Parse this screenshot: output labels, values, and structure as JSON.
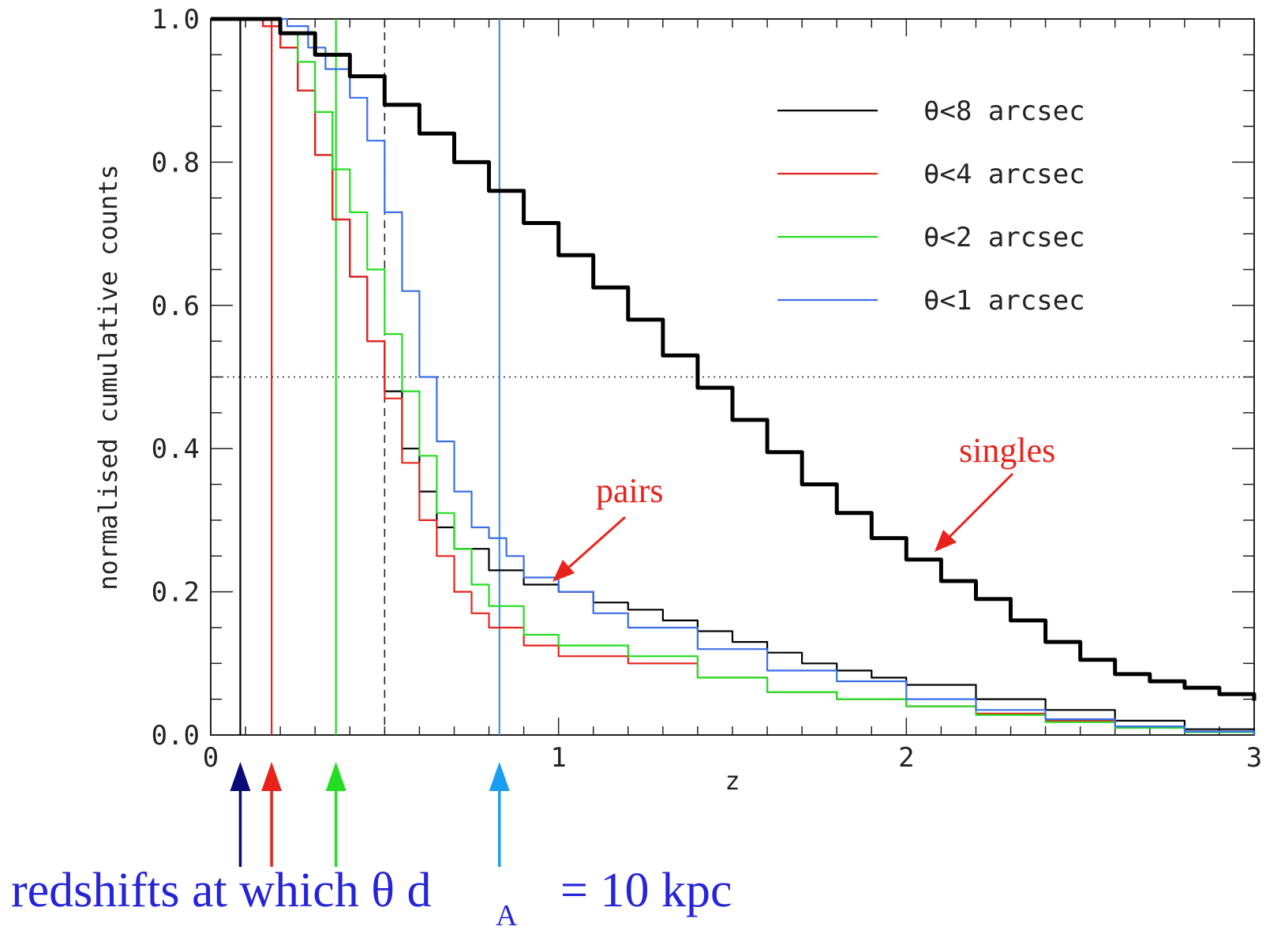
{
  "chart_data": {
    "type": "line",
    "xlabel": "z",
    "ylabel": "normalised cumulative counts",
    "xlim": [
      0,
      3
    ],
    "ylim": [
      0,
      1
    ],
    "xticks": [
      "0",
      "1",
      "2",
      "3"
    ],
    "yticks": [
      "0.0",
      "0.2",
      "0.4",
      "0.6",
      "0.8",
      "1.0"
    ],
    "grid": false,
    "legend_position": "top-right",
    "reference_lines": {
      "horizontal_dotted_y": 0.5,
      "vertical_dashed_x": 0.5
    },
    "redshift_markers": [
      {
        "x": 0.085,
        "color": "#000000",
        "arrow_color": "#0a0a78"
      },
      {
        "x": 0.175,
        "color": "#e8231c",
        "arrow_color": "#e8231c"
      },
      {
        "x": 0.36,
        "color": "#22dd22",
        "arrow_color": "#22dd22"
      },
      {
        "x": 0.83,
        "color": "#3a8ee8",
        "arrow_color": "#1a9ef0"
      }
    ],
    "series": [
      {
        "name": "θ<8 arcsec",
        "color": "#000000",
        "width": 2.2,
        "x": [
          0,
          0.1,
          0.15,
          0.2,
          0.25,
          0.3,
          0.35,
          0.4,
          0.45,
          0.5,
          0.55,
          0.6,
          0.65,
          0.7,
          0.8,
          0.9,
          1.0,
          1.1,
          1.2,
          1.3,
          1.4,
          1.5,
          1.6,
          1.7,
          1.8,
          1.9,
          2.0,
          2.2,
          2.4,
          2.6,
          2.8,
          3.0
        ],
        "y": [
          1.0,
          1.0,
          0.99,
          0.96,
          0.9,
          0.81,
          0.72,
          0.64,
          0.55,
          0.48,
          0.4,
          0.34,
          0.29,
          0.26,
          0.23,
          0.21,
          0.2,
          0.185,
          0.175,
          0.16,
          0.145,
          0.13,
          0.115,
          0.1,
          0.09,
          0.08,
          0.07,
          0.05,
          0.035,
          0.02,
          0.008,
          0.0
        ]
      },
      {
        "name": "θ<4 arcsec",
        "color": "#e8231c",
        "width": 2.2,
        "x": [
          0,
          0.1,
          0.15,
          0.2,
          0.25,
          0.3,
          0.35,
          0.4,
          0.45,
          0.5,
          0.55,
          0.6,
          0.65,
          0.7,
          0.75,
          0.8,
          0.9,
          1.0,
          1.2,
          1.4,
          1.6,
          1.8,
          2.0,
          2.2,
          2.4,
          2.6,
          2.8,
          3.0
        ],
        "y": [
          1.0,
          1.0,
          0.99,
          0.96,
          0.9,
          0.81,
          0.72,
          0.64,
          0.55,
          0.47,
          0.38,
          0.3,
          0.25,
          0.2,
          0.17,
          0.15,
          0.125,
          0.11,
          0.1,
          0.08,
          0.06,
          0.05,
          0.04,
          0.03,
          0.02,
          0.012,
          0.005,
          0.0
        ]
      },
      {
        "name": "θ<2 arcsec",
        "color": "#22dd22",
        "width": 2.2,
        "x": [
          0,
          0.12,
          0.2,
          0.25,
          0.3,
          0.35,
          0.4,
          0.45,
          0.5,
          0.55,
          0.6,
          0.65,
          0.7,
          0.75,
          0.8,
          0.9,
          1.0,
          1.2,
          1.4,
          1.6,
          1.8,
          2.0,
          2.2,
          2.4,
          2.6,
          2.8,
          3.0
        ],
        "y": [
          1.0,
          1.0,
          0.98,
          0.94,
          0.87,
          0.79,
          0.73,
          0.65,
          0.56,
          0.48,
          0.39,
          0.31,
          0.26,
          0.21,
          0.18,
          0.14,
          0.125,
          0.11,
          0.08,
          0.06,
          0.05,
          0.04,
          0.028,
          0.018,
          0.01,
          0.004,
          0.0
        ]
      },
      {
        "name": "θ<1 arcsec",
        "color": "#3a6ee8",
        "width": 2.2,
        "x": [
          0,
          0.15,
          0.22,
          0.28,
          0.33,
          0.4,
          0.45,
          0.5,
          0.55,
          0.6,
          0.65,
          0.7,
          0.75,
          0.8,
          0.85,
          0.9,
          1.0,
          1.1,
          1.2,
          1.4,
          1.6,
          1.8,
          2.0,
          2.2,
          2.4,
          2.6,
          2.8,
          3.0
        ],
        "y": [
          1.0,
          1.0,
          0.99,
          0.96,
          0.93,
          0.89,
          0.83,
          0.73,
          0.62,
          0.5,
          0.41,
          0.34,
          0.29,
          0.275,
          0.25,
          0.22,
          0.2,
          0.17,
          0.15,
          0.12,
          0.09,
          0.075,
          0.05,
          0.035,
          0.022,
          0.012,
          0.005,
          0.0
        ]
      },
      {
        "name": "singles",
        "color": "#000000",
        "width": 5,
        "x": [
          0,
          0.1,
          0.2,
          0.3,
          0.4,
          0.5,
          0.6,
          0.7,
          0.8,
          0.9,
          1.0,
          1.1,
          1.2,
          1.3,
          1.4,
          1.5,
          1.6,
          1.7,
          1.8,
          1.9,
          2.0,
          2.1,
          2.2,
          2.3,
          2.4,
          2.5,
          2.6,
          2.7,
          2.8,
          2.9,
          3.0
        ],
        "y": [
          1.0,
          1.0,
          0.98,
          0.95,
          0.92,
          0.88,
          0.84,
          0.8,
          0.76,
          0.715,
          0.67,
          0.625,
          0.58,
          0.53,
          0.485,
          0.44,
          0.395,
          0.35,
          0.31,
          0.275,
          0.245,
          0.215,
          0.19,
          0.16,
          0.13,
          0.105,
          0.085,
          0.075,
          0.066,
          0.057,
          0.048
        ]
      }
    ],
    "legend": [
      {
        "label": "θ<8 arcsec",
        "color": "#000000"
      },
      {
        "label": "θ<4 arcsec",
        "color": "#e8231c"
      },
      {
        "label": "θ<2 arcsec",
        "color": "#22dd22"
      },
      {
        "label": "θ<1 arcsec",
        "color": "#3a6ee8"
      }
    ],
    "annotations": {
      "pairs": "pairs",
      "singles": "singles"
    },
    "caption": {
      "main": "redshifts at which  θ d",
      "subscript": "A",
      "rest": "= 10 kpc"
    }
  }
}
